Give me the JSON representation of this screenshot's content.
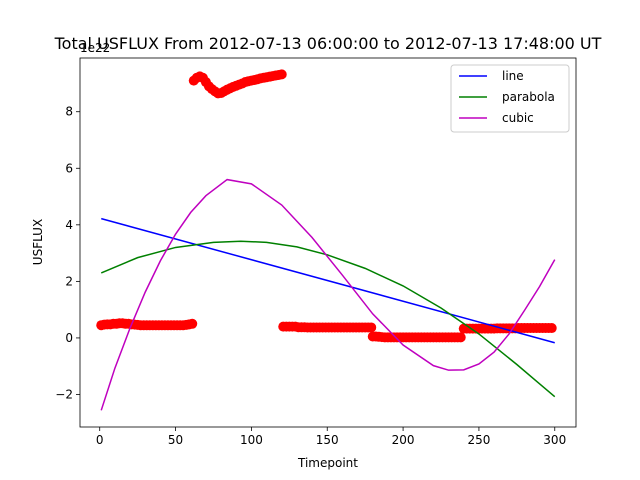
{
  "chart_data": {
    "type": "scatter",
    "title": "Total USFLUX From 2012-07-13 06:00:00 to 2012-07-13 17:48:00 UT",
    "xlabel": "Timepoint",
    "ylabel": "USFLUX",
    "offset_label": "1e22",
    "xlim": [
      -13,
      314
    ],
    "ylim": [
      -3.15,
      9.9
    ],
    "xticks": [
      0,
      50,
      100,
      150,
      200,
      250,
      300
    ],
    "yticks": [
      -2,
      0,
      2,
      4,
      6,
      8
    ],
    "xtick_labels": [
      "0",
      "50",
      "100",
      "150",
      "200",
      "250",
      "300"
    ],
    "ytick_labels": [
      "−2",
      "0",
      "2",
      "4",
      "6",
      "8"
    ],
    "legend": {
      "position": "top-right",
      "entries": [
        "line",
        "parabola",
        "cubic"
      ]
    },
    "data": {
      "name": "data",
      "color": "#ff0000",
      "segments": [
        {
          "x": [
            1,
            3,
            5,
            7,
            9,
            11,
            13,
            15,
            17,
            19,
            21,
            23,
            25,
            27,
            29,
            31,
            33,
            35,
            37,
            39,
            41,
            43,
            45,
            47,
            49,
            51,
            53,
            55,
            57,
            59,
            61
          ],
          "y": [
            0.45,
            0.47,
            0.48,
            0.48,
            0.5,
            0.5,
            0.52,
            0.52,
            0.5,
            0.5,
            0.48,
            0.47,
            0.46,
            0.45,
            0.45,
            0.45,
            0.45,
            0.45,
            0.45,
            0.45,
            0.45,
            0.45,
            0.45,
            0.45,
            0.45,
            0.45,
            0.45,
            0.45,
            0.46,
            0.48,
            0.5
          ]
        },
        {
          "x": [
            62,
            64,
            66,
            68,
            70,
            72,
            74,
            76,
            78,
            80,
            82,
            84,
            86,
            88,
            90,
            92,
            94,
            96,
            98,
            100,
            102,
            104,
            106,
            108,
            110,
            112,
            114,
            116,
            118,
            120
          ],
          "y": [
            9.1,
            9.2,
            9.25,
            9.2,
            9.05,
            8.9,
            8.8,
            8.72,
            8.65,
            8.66,
            8.72,
            8.78,
            8.83,
            8.88,
            8.92,
            8.96,
            9.0,
            9.05,
            9.08,
            9.1,
            9.12,
            9.15,
            9.18,
            9.2,
            9.22,
            9.24,
            9.26,
            9.28,
            9.3,
            9.32
          ]
        },
        {
          "x": [
            121,
            123,
            125,
            127,
            129,
            131,
            133,
            135,
            137,
            139,
            141,
            143,
            145,
            147,
            149,
            151,
            153,
            155,
            157,
            159,
            161,
            163,
            165,
            167,
            169,
            171,
            173,
            175,
            177,
            179
          ],
          "y": [
            0.4,
            0.4,
            0.4,
            0.4,
            0.4,
            0.38,
            0.38,
            0.38,
            0.37,
            0.37,
            0.37,
            0.37,
            0.37,
            0.37,
            0.37,
            0.37,
            0.37,
            0.37,
            0.37,
            0.37,
            0.37,
            0.37,
            0.37,
            0.37,
            0.37,
            0.37,
            0.37,
            0.37,
            0.37,
            0.37
          ]
        },
        {
          "x": [
            180,
            182,
            184,
            186,
            188,
            190,
            192,
            194,
            196,
            198,
            200,
            202,
            204,
            206,
            208,
            210,
            212,
            214,
            216,
            218,
            220,
            222,
            224,
            226,
            228,
            230,
            232,
            234,
            236,
            238
          ],
          "y": [
            0.05,
            0.05,
            0.04,
            0.03,
            0.02,
            0.02,
            0.02,
            0.02,
            0.02,
            0.02,
            0.02,
            0.02,
            0.02,
            0.02,
            0.02,
            0.02,
            0.02,
            0.02,
            0.02,
            0.02,
            0.02,
            0.02,
            0.02,
            0.02,
            0.02,
            0.02,
            0.02,
            0.02,
            0.02,
            0.02
          ]
        },
        {
          "x": [
            240,
            242,
            244,
            246,
            248,
            250,
            252,
            254,
            256,
            258,
            260,
            262,
            264,
            266,
            268,
            270,
            272,
            274,
            276,
            278,
            280,
            282,
            284,
            286,
            288,
            290,
            292,
            294,
            296,
            298
          ],
          "y": [
            0.33,
            0.33,
            0.33,
            0.33,
            0.33,
            0.33,
            0.33,
            0.33,
            0.33,
            0.33,
            0.33,
            0.34,
            0.34,
            0.34,
            0.34,
            0.34,
            0.34,
            0.34,
            0.35,
            0.35,
            0.35,
            0.35,
            0.35,
            0.35,
            0.35,
            0.35,
            0.35,
            0.35,
            0.35,
            0.35
          ]
        }
      ]
    },
    "series": [
      {
        "name": "line",
        "color": "#0000ff",
        "x": [
          1,
          300
        ],
        "y": [
          4.22,
          -0.17
        ]
      },
      {
        "name": "parabola",
        "color": "#008000",
        "x": [
          1,
          25,
          50,
          75,
          93,
          110,
          130,
          150,
          175,
          200,
          225,
          250,
          275,
          300
        ],
        "y": [
          2.3,
          2.84,
          3.2,
          3.38,
          3.42,
          3.38,
          3.22,
          2.94,
          2.46,
          1.84,
          1.06,
          0.14,
          -0.94,
          -2.08
        ]
      },
      {
        "name": "cubic",
        "color": "#bf00bf",
        "x": [
          1,
          10,
          20,
          30,
          40,
          50,
          60,
          70,
          84,
          100,
          120,
          140,
          160,
          180,
          200,
          220,
          230,
          240,
          250,
          260,
          270,
          280,
          290,
          300
        ],
        "y": [
          -2.56,
          -1.07,
          0.35,
          1.62,
          2.73,
          3.67,
          4.44,
          5.03,
          5.6,
          5.45,
          4.7,
          3.55,
          2.22,
          0.85,
          -0.25,
          -0.98,
          -1.14,
          -1.13,
          -0.92,
          -0.5,
          0.15,
          0.97,
          1.82,
          2.77
        ]
      }
    ]
  }
}
